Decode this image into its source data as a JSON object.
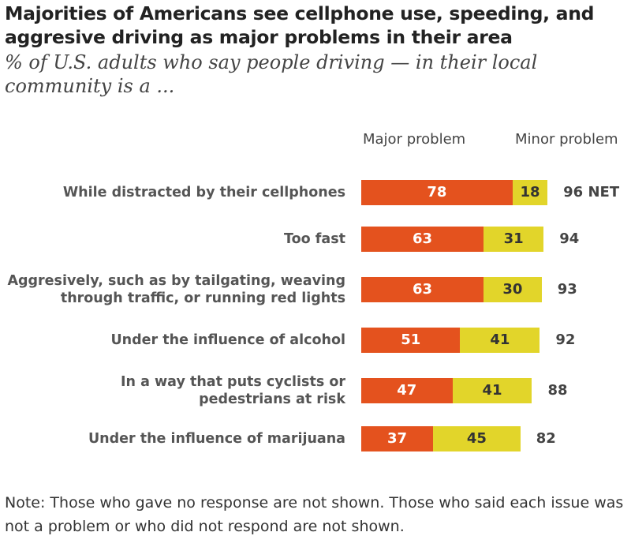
{
  "title": "Majorities of Americans see cellphone use, speeding, and aggresive driving as major problems in their area",
  "subtitle": "% of U.S. adults who say people driving — in their local community is a ...",
  "note": "Note: Those who gave no response are not shown. Those who said each issue was not a problem or who did not respond are not shown.",
  "colors": {
    "major": "#E4521E",
    "minor": "#E2D52A"
  },
  "chart_data": {
    "type": "bar",
    "orientation": "horizontal-stacked",
    "categories": [
      "While distracted by their cellphones",
      "Too fast",
      "Aggresively, such as by tailgating, weaving through traffic, or running red lights",
      "Under the influence of alcohol",
      "In a way that puts cyclists or pedestrians at risk",
      "Under the influence of marijuana"
    ],
    "series": [
      {
        "name": "Major problem",
        "values": [
          78,
          63,
          63,
          51,
          47,
          37
        ]
      },
      {
        "name": "Minor problem",
        "values": [
          18,
          31,
          30,
          41,
          41,
          45
        ]
      }
    ],
    "net": [
      96,
      94,
      93,
      92,
      88,
      82
    ],
    "net_suffix": "NET",
    "legend_position": "top"
  }
}
